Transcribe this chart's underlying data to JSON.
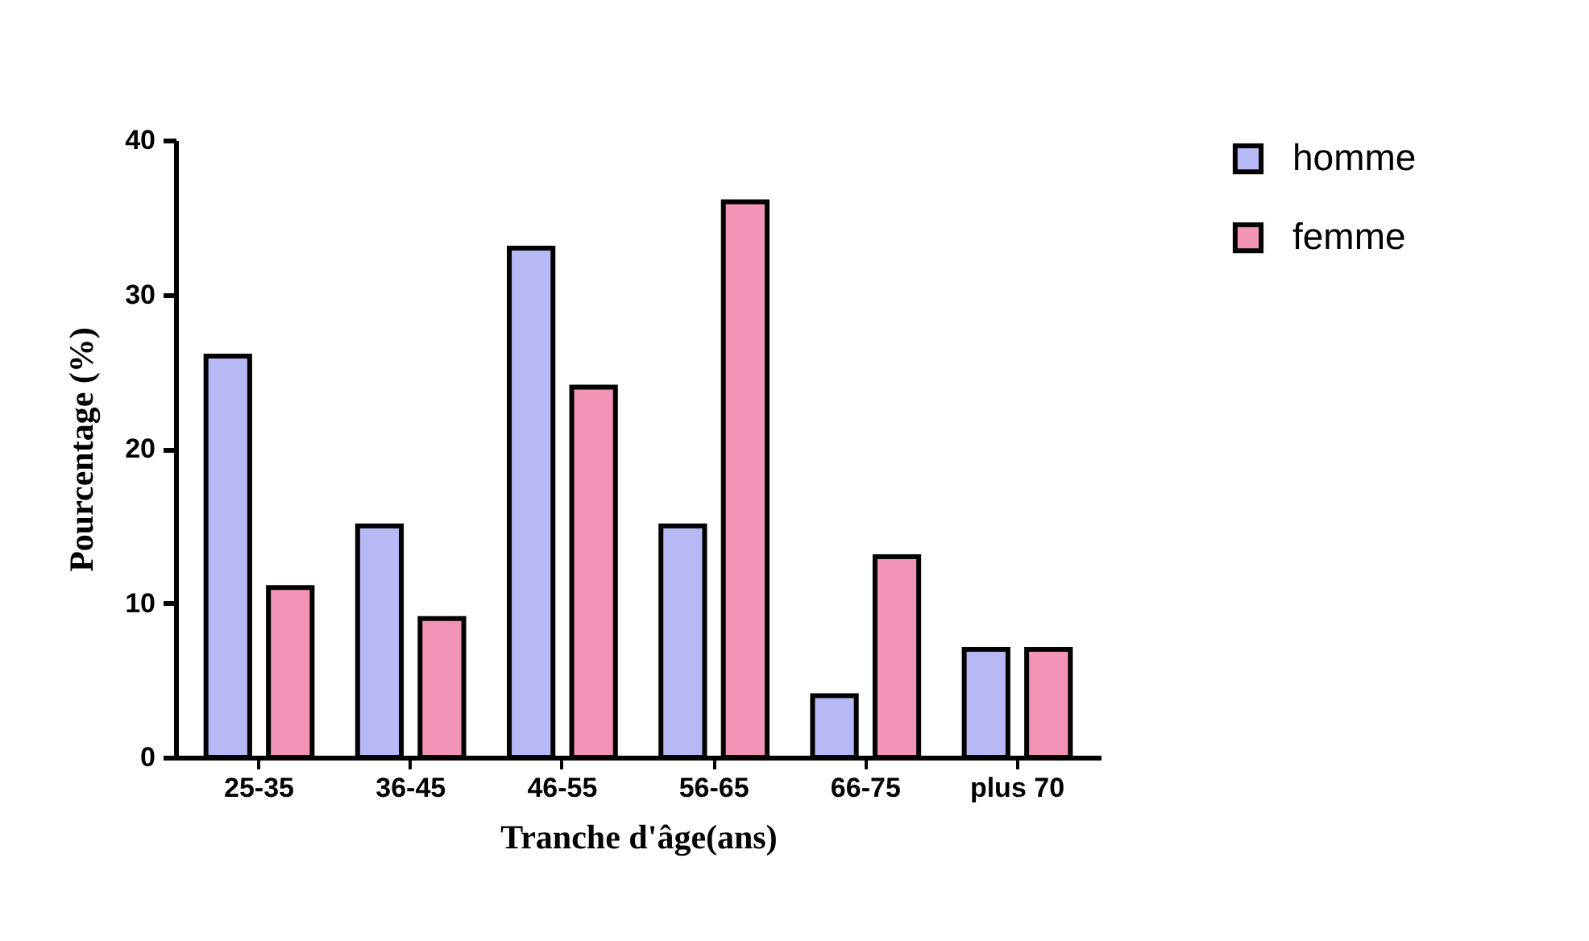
{
  "chart_data": {
    "type": "bar",
    "xlabel": "Tranche d'âge(ans)",
    "ylabel": "Pourcentage (%)",
    "categories": [
      "25-35",
      "36-45",
      "46-55",
      "56-65",
      "66-75",
      "plus 70"
    ],
    "series": [
      {
        "name": "homme",
        "color": "#b8b8f4",
        "values": [
          26,
          15,
          33,
          15,
          4,
          7
        ]
      },
      {
        "name": "femme",
        "color": "#f294b8",
        "values": [
          11,
          9,
          24,
          36,
          13,
          7
        ]
      }
    ],
    "ylim": [
      0,
      40
    ],
    "yticks": [
      0,
      10,
      20,
      30,
      40
    ],
    "grid": false,
    "legend": "top right"
  }
}
